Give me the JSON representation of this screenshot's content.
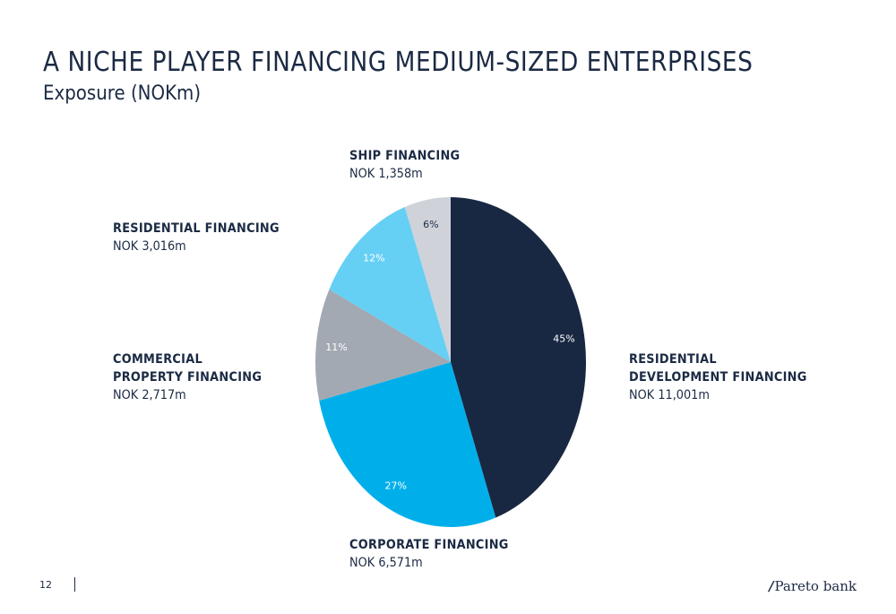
{
  "header": {
    "title": "A NICHE PLAYER FINANCING MEDIUM-SIZED ENTERPRISES",
    "subtitle": "Exposure (NOKm)"
  },
  "chart_data": {
    "type": "pie",
    "title": "A NICHE PLAYER FINANCING MEDIUM-SIZED ENTERPRISES",
    "subtitle": "Exposure (NOKm)",
    "start_angle_deg": 0,
    "direction": "clockwise",
    "slices": [
      {
        "name": "RESIDENTIAL DEVELOPMENT FINANCING",
        "value_label": "NOK 11,001m",
        "value": 11001,
        "pct_label": "45%",
        "color": "#192842",
        "pct_color": "#ffffff"
      },
      {
        "name": "CORPORATE FINANCING",
        "value_label": "NOK 6,571m",
        "value": 6571,
        "pct_label": "27%",
        "color": "#00afea",
        "pct_color": "#ffffff"
      },
      {
        "name": "COMMERCIAL PROPERTY FINANCING",
        "value_label": "NOK 2,717m",
        "value": 2717,
        "pct_label": "11%",
        "color": "#a2a9b2",
        "pct_color": "#ffffff"
      },
      {
        "name": "RESIDENTIAL FINANCING",
        "value_label": "NOK 3,016m",
        "value": 3016,
        "pct_label": "12%",
        "color": "#66cff4",
        "pct_color": "#ffffff"
      },
      {
        "name": "SHIP FINANCING",
        "value_label": "NOK 1,358m",
        "value": 1358,
        "pct_label": "6%",
        "color": "#cfd3d9",
        "pct_color": "#1b2a44"
      }
    ]
  },
  "footer": {
    "page_number": "12",
    "logo_text": "Pareto bank"
  }
}
